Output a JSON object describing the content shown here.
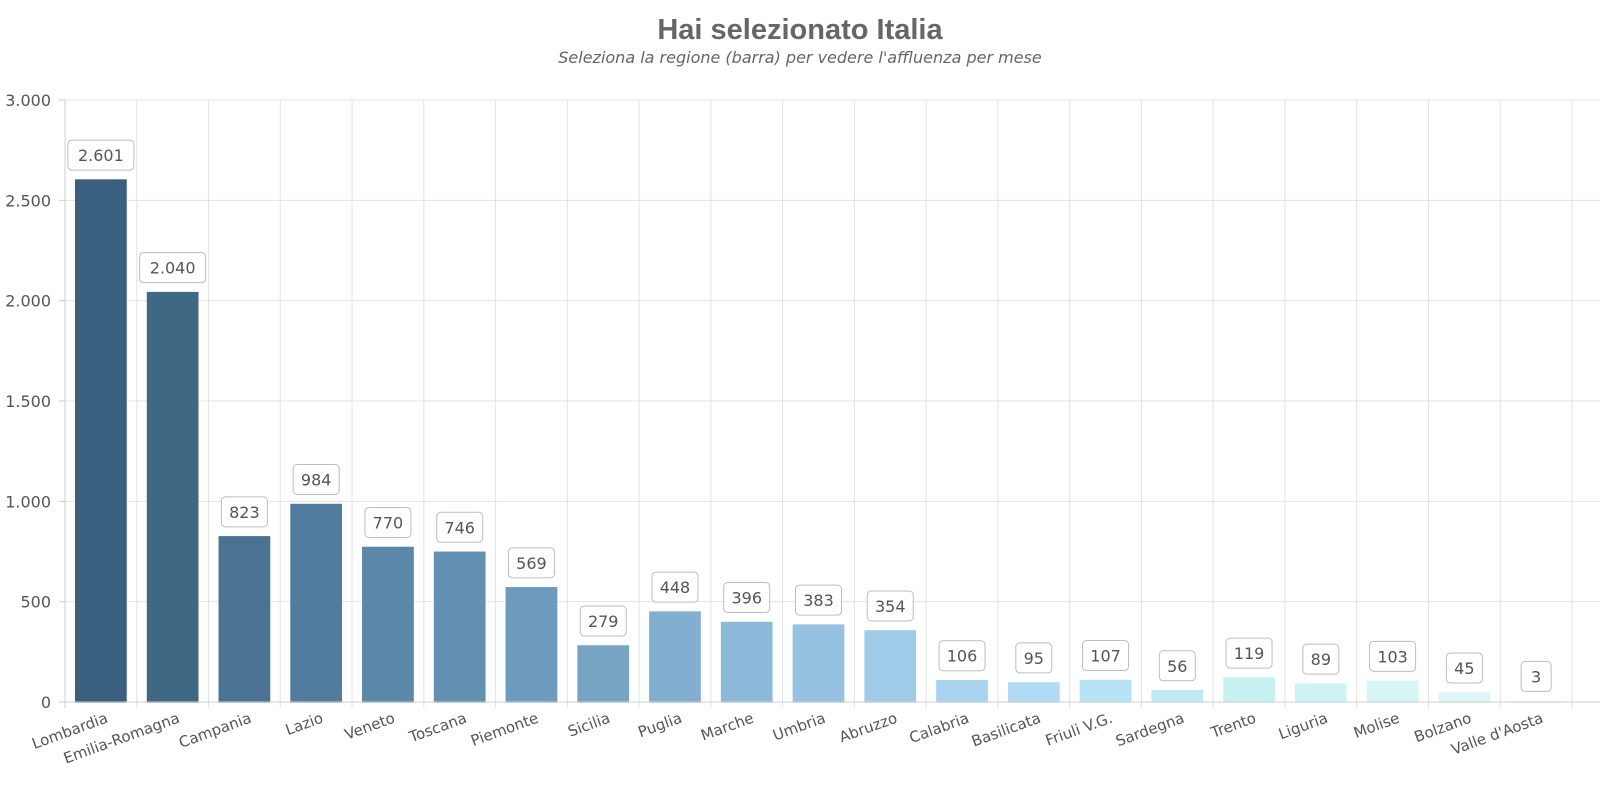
{
  "header": {
    "title": "Hai selezionato Italia",
    "subtitle": "Seleziona la regione (barra) per vedere l'affluenza per mese"
  },
  "chart_data": {
    "type": "bar",
    "title": "Hai selezionato Italia",
    "subtitle": "Seleziona la regione (barra) per vedere l'affluenza per mese",
    "xlabel": "",
    "ylabel": "",
    "ylim": [
      0,
      3000
    ],
    "yticks": [
      0,
      500,
      1000,
      1500,
      2000,
      2500,
      3000
    ],
    "ytick_labels": [
      "0",
      "500",
      "1.000",
      "1.500",
      "2.000",
      "2.500",
      "3.000"
    ],
    "grid": true,
    "legend": "none",
    "categories": [
      "Lombardia",
      "Emilia-Romagna",
      "Campania",
      "Lazio",
      "Veneto",
      "Toscana",
      "Piemonte",
      "Sicilia",
      "Puglia",
      "Marche",
      "Umbria",
      "Abruzzo",
      "Calabria",
      "Basilicata",
      "Friuli V.G.",
      "Sardegna",
      "Trento",
      "Liguria",
      "Molise",
      "Bolzano",
      "Valle d'Aosta"
    ],
    "values": [
      2601,
      2040,
      823,
      984,
      770,
      746,
      569,
      279,
      448,
      396,
      383,
      354,
      106,
      95,
      107,
      56,
      119,
      89,
      103,
      45,
      3
    ],
    "value_labels": [
      "2.601",
      "2.040",
      "823",
      "984",
      "770",
      "746",
      "569",
      "279",
      "448",
      "396",
      "383",
      "354",
      "106",
      "95",
      "107",
      "56",
      "119",
      "89",
      "103",
      "45",
      "3"
    ],
    "colors": [
      "#3a6080",
      "#3f6885",
      "#4a7293",
      "#517c9e",
      "#5b87a8",
      "#6491b2",
      "#6e9bbd",
      "#78a4c4",
      "#82aed0",
      "#8cb8d9",
      "#96c1e0",
      "#a0cbe8",
      "#a9d3ef",
      "#b1dbf4",
      "#b8e2f6",
      "#bfe9f7",
      "#c6f0f2",
      "#cdf3f4",
      "#d5f5f6",
      "#ddf6f7",
      "#e5f8f8"
    ]
  }
}
